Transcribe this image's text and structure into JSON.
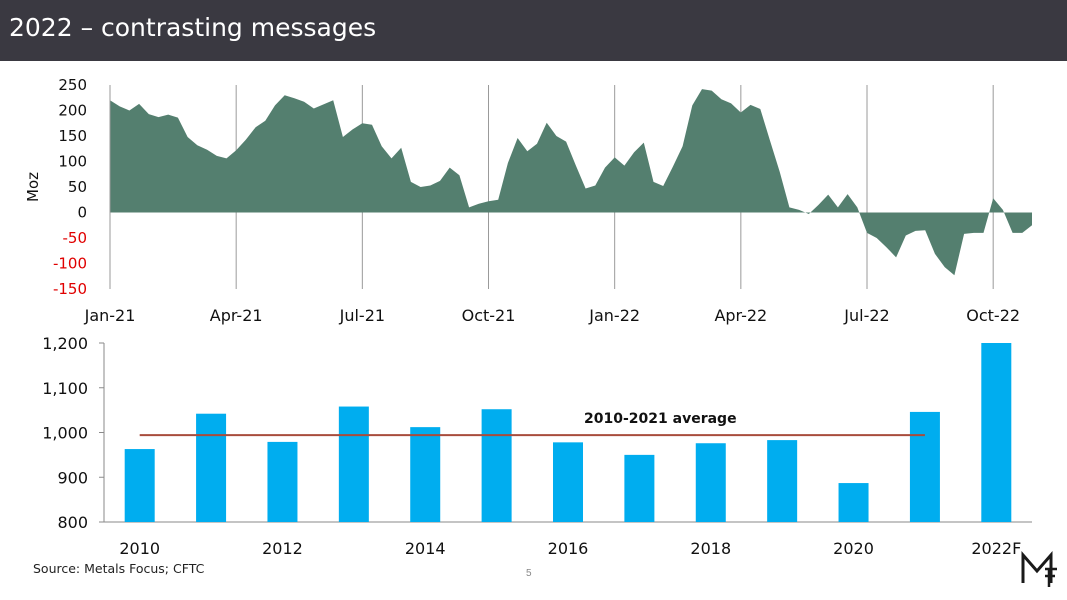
{
  "header": {
    "title": "2022 – contrasting messages"
  },
  "footer": {
    "source": "Source: Metals Focus; CFTC",
    "page_number": "5"
  },
  "colors": {
    "header_bg": "#3a3941",
    "area_fill": "#547f6f",
    "bar_fill": "#00adef",
    "average_line": "#a84c3c",
    "negative_tick": "#e00000"
  },
  "chart_data": [
    {
      "type": "area",
      "ylabel": "Moz",
      "ylim": [
        -150,
        250
      ],
      "yticks": [
        250,
        200,
        150,
        100,
        50,
        0,
        -50,
        -100,
        -150
      ],
      "xticks": [
        {
          "label": "Jan-21",
          "week": 0
        },
        {
          "label": "Apr-21",
          "week": 13
        },
        {
          "label": "Jul-21",
          "week": 26
        },
        {
          "label": "Oct-21",
          "week": 39
        },
        {
          "label": "Jan-22",
          "week": 52
        },
        {
          "label": "Apr-22",
          "week": 65
        },
        {
          "label": "Jul-22",
          "week": 78
        },
        {
          "label": "Oct-22",
          "week": 91
        }
      ],
      "grid": "vertical",
      "values": [
        220,
        208,
        200,
        213,
        193,
        187,
        192,
        186,
        148,
        132,
        123,
        111,
        106,
        122,
        143,
        167,
        180,
        210,
        230,
        224,
        217,
        204,
        212,
        220,
        148,
        163,
        175,
        172,
        130,
        106,
        127,
        60,
        50,
        53,
        62,
        88,
        73,
        10,
        17,
        22,
        25,
        97,
        146,
        120,
        135,
        176,
        150,
        139,
        92,
        47,
        53,
        88,
        108,
        92,
        118,
        137,
        60,
        52,
        90,
        130,
        210,
        242,
        239,
        222,
        214,
        196,
        211,
        203,
        141,
        80,
        10,
        5,
        -3,
        15,
        35,
        10,
        36,
        10,
        -40,
        -50,
        -68,
        -88,
        -45,
        -36,
        -35,
        -81,
        -107,
        -123,
        -42,
        -40,
        -40,
        28,
        5,
        -40,
        -40,
        -25
      ]
    },
    {
      "type": "bar",
      "categories": [
        "2010",
        "2011",
        "2012",
        "2013",
        "2014",
        "2015",
        "2016",
        "2017",
        "2018",
        "2019",
        "2020",
        "2021",
        "2022F"
      ],
      "values": [
        963,
        1042,
        979,
        1058,
        1012,
        1052,
        978,
        950,
        976,
        983,
        887,
        1046,
        1200
      ],
      "ylim": [
        800,
        1200
      ],
      "yticks": [
        "1,200",
        "1,100",
        "1,000",
        "900",
        "800"
      ],
      "ytick_values": [
        1200,
        1100,
        1000,
        900,
        800
      ],
      "xtick_labels": [
        "2010",
        "",
        "2012",
        "",
        "2014",
        "",
        "2016",
        "",
        "2018",
        "",
        "2020",
        "",
        "2022F"
      ],
      "average": {
        "label": "2010-2021 average",
        "value": 994,
        "from": "2010",
        "to": "2021"
      }
    }
  ]
}
